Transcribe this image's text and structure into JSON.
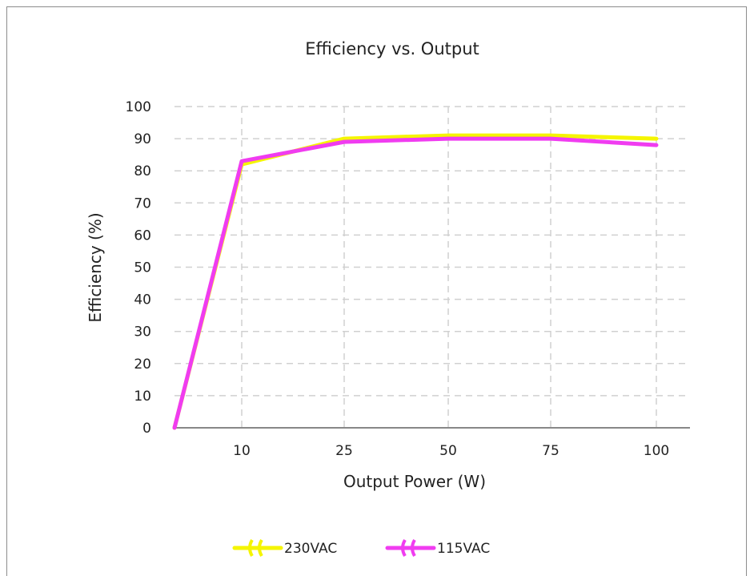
{
  "chart_data": {
    "type": "line",
    "title": "Efficiency vs. Output",
    "xlabel": "Output Power (W)",
    "ylabel": "Efficiency (%)",
    "categories": [
      "",
      "10",
      "25",
      "50",
      "75",
      "100"
    ],
    "ylim": [
      0,
      100
    ],
    "yticks": [
      "0",
      "10",
      "20",
      "30",
      "40",
      "50",
      "60",
      "70",
      "80",
      "90",
      "100"
    ],
    "grid": true,
    "legend_position": "bottom",
    "series": [
      {
        "name": "230VAC",
        "color": "#f5f500",
        "values": [
          0,
          82,
          90,
          91,
          91,
          90
        ]
      },
      {
        "name": "115VAC",
        "color": "#f03cf0",
        "values": [
          0,
          83,
          89,
          90,
          90,
          88
        ]
      }
    ]
  }
}
